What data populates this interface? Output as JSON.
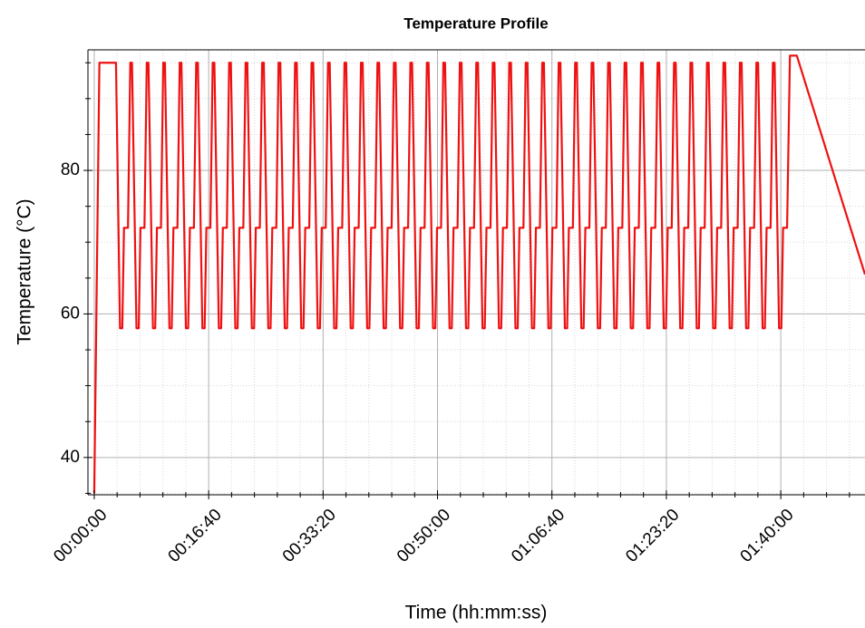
{
  "chart_data": {
    "type": "line",
    "title": "Temperature Profile",
    "x_label": "Time (hh:mm:ss)",
    "y_label": "Temperature (°C)",
    "xlim": [
      -55,
      6736
    ],
    "ylim": [
      34.8,
      96.8
    ],
    "xticks": [
      {
        "value": 0,
        "label": "00:00:00"
      },
      {
        "value": 1000,
        "label": "00:16:40"
      },
      {
        "value": 2000,
        "label": "00:33:20"
      },
      {
        "value": 3000,
        "label": "00:50:00"
      },
      {
        "value": 4000,
        "label": "01:06:40"
      },
      {
        "value": 5000,
        "label": "01:23:20"
      },
      {
        "value": 6000,
        "label": "01:40:00"
      }
    ],
    "xticks_minor": [
      200,
      400,
      600,
      800,
      1200,
      1400,
      1600,
      1800,
      2200,
      2400,
      2600,
      2800,
      3200,
      3400,
      3600,
      3800,
      4200,
      4400,
      4600,
      4800,
      5200,
      5400,
      5600,
      5800,
      6200,
      6400,
      6600
    ],
    "yticks": [
      40,
      60,
      80
    ],
    "yticks_minor": [
      35,
      45,
      50,
      55,
      65,
      70,
      75,
      85,
      90,
      95
    ],
    "grid": true,
    "x": [
      0,
      45,
      190,
      225,
      245,
      260,
      295,
      315,
      330,
      369,
      389,
      404,
      439,
      459,
      474,
      513,
      533,
      548,
      583,
      603,
      618,
      657,
      677,
      692,
      727,
      747,
      762,
      801,
      821,
      836,
      871,
      891,
      906,
      945,
      965,
      980,
      1015,
      1035,
      1050,
      1089,
      1109,
      1124,
      1159,
      1179,
      1194,
      1233,
      1253,
      1268,
      1303,
      1323,
      1338,
      1377,
      1397,
      1412,
      1447,
      1467,
      1482,
      1521,
      1541,
      1556,
      1591,
      1611,
      1626,
      1665,
      1685,
      1700,
      1735,
      1755,
      1770,
      1809,
      1829,
      1844,
      1879,
      1899,
      1914,
      1953,
      1973,
      1988,
      2023,
      2043,
      2058,
      2097,
      2117,
      2132,
      2167,
      2187,
      2202,
      2241,
      2261,
      2276,
      2311,
      2331,
      2346,
      2385,
      2405,
      2420,
      2455,
      2475,
      2490,
      2529,
      2549,
      2564,
      2599,
      2619,
      2634,
      2673,
      2693,
      2708,
      2743,
      2763,
      2778,
      2817,
      2837,
      2852,
      2887,
      2907,
      2922,
      2961,
      2981,
      2996,
      3031,
      3051,
      3066,
      3105,
      3125,
      3140,
      3175,
      3195,
      3210,
      3249,
      3269,
      3284,
      3319,
      3339,
      3354,
      3393,
      3413,
      3428,
      3463,
      3483,
      3498,
      3537,
      3557,
      3572,
      3607,
      3627,
      3642,
      3681,
      3701,
      3716,
      3751,
      3771,
      3786,
      3825,
      3845,
      3860,
      3895,
      3915,
      3930,
      3969,
      3989,
      4004,
      4039,
      4059,
      4074,
      4113,
      4133,
      4148,
      4183,
      4203,
      4218,
      4257,
      4277,
      4292,
      4327,
      4347,
      4362,
      4401,
      4421,
      4436,
      4471,
      4491,
      4506,
      4545,
      4565,
      4580,
      4615,
      4635,
      4650,
      4689,
      4709,
      4724,
      4759,
      4779,
      4794,
      4833,
      4853,
      4868,
      4903,
      4923,
      4938,
      4977,
      4997,
      5012,
      5047,
      5067,
      5082,
      5121,
      5141,
      5156,
      5191,
      5211,
      5226,
      5265,
      5285,
      5300,
      5335,
      5355,
      5370,
      5409,
      5429,
      5444,
      5479,
      5499,
      5514,
      5553,
      5573,
      5588,
      5623,
      5643,
      5658,
      5697,
      5717,
      5732,
      5767,
      5787,
      5802,
      5841,
      5861,
      5876,
      5911,
      5931,
      5946,
      5985,
      6005,
      6020,
      6055,
      6080,
      6140,
      6736
    ],
    "series": [
      {
        "color": "#ee1111",
        "values": [
          35,
          95,
          95,
          58,
          58,
          72,
          72,
          95,
          95,
          58,
          58,
          72,
          72,
          95,
          95,
          58,
          58,
          72,
          72,
          95,
          95,
          58,
          58,
          72,
          72,
          95,
          95,
          58,
          58,
          72,
          72,
          95,
          95,
          58,
          58,
          72,
          72,
          95,
          95,
          58,
          58,
          72,
          72,
          95,
          95,
          58,
          58,
          72,
          72,
          95,
          95,
          58,
          58,
          72,
          72,
          95,
          95,
          58,
          58,
          72,
          72,
          95,
          95,
          58,
          58,
          72,
          72,
          95,
          95,
          58,
          58,
          72,
          72,
          95,
          95,
          58,
          58,
          72,
          72,
          95,
          95,
          58,
          58,
          72,
          72,
          95,
          95,
          58,
          58,
          72,
          72,
          95,
          95,
          58,
          58,
          72,
          72,
          95,
          95,
          58,
          58,
          72,
          72,
          95,
          95,
          58,
          58,
          72,
          72,
          95,
          95,
          58,
          58,
          72,
          72,
          95,
          95,
          58,
          58,
          72,
          72,
          95,
          95,
          58,
          58,
          72,
          72,
          95,
          95,
          58,
          58,
          72,
          72,
          95,
          95,
          58,
          58,
          72,
          72,
          95,
          95,
          58,
          58,
          72,
          72,
          95,
          95,
          58,
          58,
          72,
          72,
          95,
          95,
          58,
          58,
          72,
          72,
          95,
          95,
          58,
          58,
          72,
          72,
          95,
          95,
          58,
          58,
          72,
          72,
          95,
          95,
          58,
          58,
          72,
          72,
          95,
          95,
          58,
          58,
          72,
          72,
          95,
          95,
          58,
          58,
          72,
          72,
          95,
          95,
          58,
          58,
          72,
          72,
          95,
          95,
          58,
          58,
          72,
          72,
          95,
          95,
          58,
          58,
          72,
          72,
          95,
          95,
          58,
          58,
          72,
          72,
          95,
          95,
          58,
          58,
          72,
          72,
          95,
          95,
          58,
          58,
          72,
          72,
          95,
          95,
          58,
          58,
          72,
          72,
          95,
          95,
          58,
          58,
          72,
          72,
          95,
          95,
          58,
          58,
          72,
          72,
          95,
          95,
          58,
          58,
          72,
          72,
          96,
          96,
          65.5
        ]
      }
    ]
  }
}
